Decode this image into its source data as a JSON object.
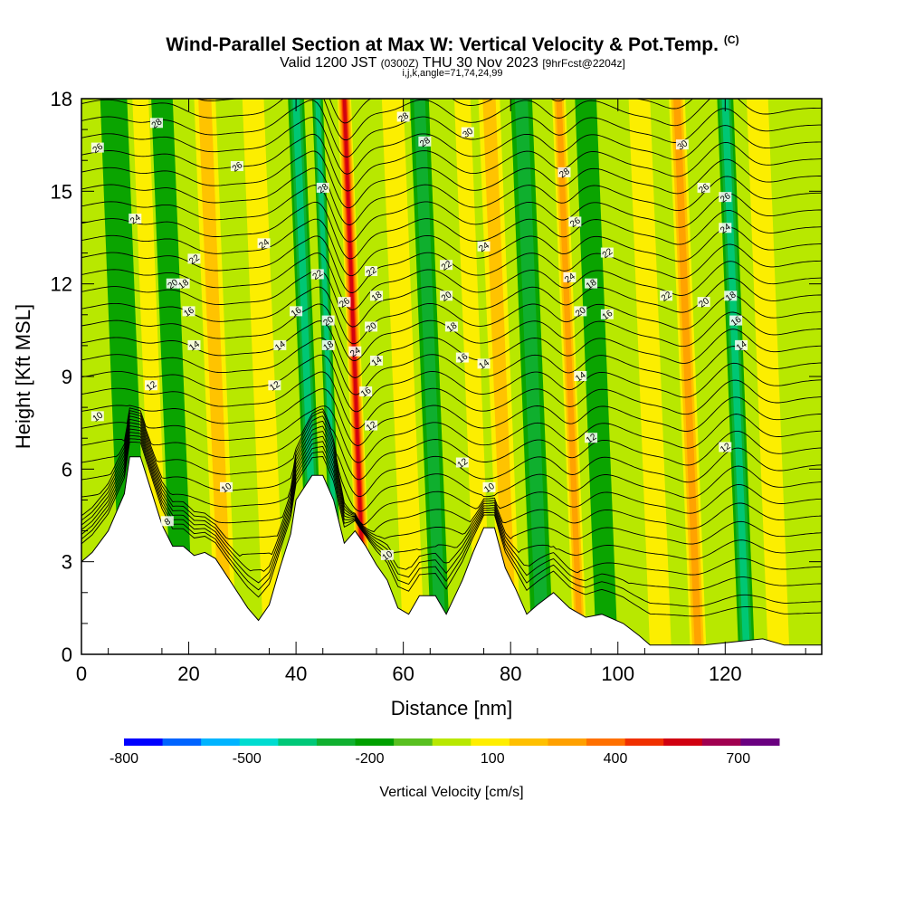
{
  "header": {
    "title": "Wind-Parallel Section at Max W: Vertical Velocity & Pot.Temp.",
    "copyright": "(C)",
    "valid_prefix": "Valid 1200 JST",
    "valid_utc": "(0300Z)",
    "valid_date": "THU 30 Nov 2023",
    "forecast": "[9hrFcst@2204z]",
    "params": "i,j,k,angle=71,74,24,99"
  },
  "chart_data": {
    "type": "contour",
    "xlabel": "Distance [nm]",
    "ylabel": "Height [Kft MSL]",
    "xlim": [
      0,
      138
    ],
    "ylim": [
      0,
      18
    ],
    "x_ticks": [
      0,
      20,
      40,
      60,
      80,
      100,
      120
    ],
    "y_ticks": [
      0,
      3,
      6,
      9,
      12,
      15,
      18
    ],
    "terrain_height_kft": [
      [
        0,
        3
      ],
      [
        2,
        3.3
      ],
      [
        5,
        4
      ],
      [
        8,
        5.2
      ],
      [
        9,
        6.4
      ],
      [
        11,
        6.4
      ],
      [
        13,
        5.3
      ],
      [
        15,
        4.2
      ],
      [
        17,
        3.5
      ],
      [
        19,
        3.5
      ],
      [
        21,
        3.2
      ],
      [
        23,
        3.3
      ],
      [
        25,
        3.1
      ],
      [
        28,
        2.3
      ],
      [
        31,
        1.5
      ],
      [
        33,
        1.1
      ],
      [
        35,
        1.6
      ],
      [
        37,
        2.8
      ],
      [
        39,
        3.9
      ],
      [
        40,
        5
      ],
      [
        43,
        5.8
      ],
      [
        45,
        5.8
      ],
      [
        47,
        5
      ],
      [
        49,
        3.6
      ],
      [
        51,
        4
      ],
      [
        53,
        3.5
      ],
      [
        55,
        2.9
      ],
      [
        57,
        2.4
      ],
      [
        59,
        1.5
      ],
      [
        61,
        1.3
      ],
      [
        63,
        1.9
      ],
      [
        66,
        1.9
      ],
      [
        68,
        1.3
      ],
      [
        71,
        2.4
      ],
      [
        73,
        3.3
      ],
      [
        75,
        4.1
      ],
      [
        77,
        4.1
      ],
      [
        79,
        2.8
      ],
      [
        81,
        2.1
      ],
      [
        83,
        1.3
      ],
      [
        85,
        1.6
      ],
      [
        88,
        2
      ],
      [
        91,
        1.5
      ],
      [
        94,
        1.2
      ],
      [
        97,
        1.3
      ],
      [
        101,
        1
      ],
      [
        104,
        0.6
      ],
      [
        106,
        0.3
      ],
      [
        116,
        0.3
      ],
      [
        127,
        0.5
      ],
      [
        131,
        0.3
      ],
      [
        138,
        0.3
      ]
    ],
    "vertical_velocity_bands": [
      {
        "x": 10,
        "w": -180,
        "width": 5
      },
      {
        "x": 19,
        "w": -150,
        "width": 4
      },
      {
        "x": 15,
        "w": 150,
        "width": 3
      },
      {
        "x": 27,
        "w": 200,
        "width": 4
      },
      {
        "x": 36,
        "w": 120,
        "width": 4
      },
      {
        "x": 44,
        "w": -320,
        "width": 3
      },
      {
        "x": 48,
        "w": -380,
        "width": 2
      },
      {
        "x": 53,
        "w": 650,
        "width": 2.5
      },
      {
        "x": 62,
        "w": 120,
        "width": 4
      },
      {
        "x": 67,
        "w": -220,
        "width": 3.5
      },
      {
        "x": 75,
        "w": 180,
        "width": 3
      },
      {
        "x": 80,
        "w": 220,
        "width": 4
      },
      {
        "x": 86,
        "w": -220,
        "width": 4
      },
      {
        "x": 93,
        "w": 330,
        "width": 2.5
      },
      {
        "x": 98,
        "w": -180,
        "width": 4
      },
      {
        "x": 108,
        "w": 150,
        "width": 4
      },
      {
        "x": 115,
        "w": 320,
        "width": 3
      },
      {
        "x": 124,
        "w": -380,
        "width": 3
      },
      {
        "x": 130,
        "w": 150,
        "width": 4
      }
    ],
    "theta_contour_labels": [
      {
        "x": 14,
        "y": 17.2,
        "text": "28"
      },
      {
        "x": 3,
        "y": 16.4,
        "text": "26"
      },
      {
        "x": 29,
        "y": 15.8,
        "text": "26"
      },
      {
        "x": 45,
        "y": 15.1,
        "text": "28"
      },
      {
        "x": 60,
        "y": 17.4,
        "text": "28"
      },
      {
        "x": 64,
        "y": 16.6,
        "text": "28"
      },
      {
        "x": 72,
        "y": 16.9,
        "text": "30"
      },
      {
        "x": 90,
        "y": 15.6,
        "text": "28"
      },
      {
        "x": 112,
        "y": 16.5,
        "text": "30"
      },
      {
        "x": 116,
        "y": 15.1,
        "text": "26"
      },
      {
        "x": 120,
        "y": 14.8,
        "text": "26"
      },
      {
        "x": 10,
        "y": 14.1,
        "text": "24"
      },
      {
        "x": 34,
        "y": 13.3,
        "text": "24"
      },
      {
        "x": 75,
        "y": 13.2,
        "text": "24"
      },
      {
        "x": 92,
        "y": 14.0,
        "text": "26"
      },
      {
        "x": 120,
        "y": 13.8,
        "text": "24"
      },
      {
        "x": 21,
        "y": 12.8,
        "text": "22"
      },
      {
        "x": 44,
        "y": 12.3,
        "text": "22"
      },
      {
        "x": 54,
        "y": 12.4,
        "text": "22"
      },
      {
        "x": 68,
        "y": 12.6,
        "text": "22"
      },
      {
        "x": 98,
        "y": 13.0,
        "text": "22"
      },
      {
        "x": 91,
        "y": 12.2,
        "text": "24"
      },
      {
        "x": 17,
        "y": 12.0,
        "text": "20"
      },
      {
        "x": 19,
        "y": 12.0,
        "text": "18"
      },
      {
        "x": 55,
        "y": 11.6,
        "text": "18"
      },
      {
        "x": 68,
        "y": 11.6,
        "text": "20"
      },
      {
        "x": 95,
        "y": 12.0,
        "text": "18"
      },
      {
        "x": 109,
        "y": 11.6,
        "text": "22"
      },
      {
        "x": 116,
        "y": 11.4,
        "text": "20"
      },
      {
        "x": 121,
        "y": 11.6,
        "text": "18"
      },
      {
        "x": 49,
        "y": 11.4,
        "text": "26"
      },
      {
        "x": 20,
        "y": 11.1,
        "text": "16"
      },
      {
        "x": 40,
        "y": 11.1,
        "text": "16"
      },
      {
        "x": 46,
        "y": 10.8,
        "text": "20"
      },
      {
        "x": 54,
        "y": 10.6,
        "text": "20"
      },
      {
        "x": 69,
        "y": 10.6,
        "text": "18"
      },
      {
        "x": 93,
        "y": 11.1,
        "text": "20"
      },
      {
        "x": 98,
        "y": 11.0,
        "text": "16"
      },
      {
        "x": 122,
        "y": 10.8,
        "text": "16"
      },
      {
        "x": 21,
        "y": 10.0,
        "text": "14"
      },
      {
        "x": 37,
        "y": 10.0,
        "text": "14"
      },
      {
        "x": 46,
        "y": 10.0,
        "text": "18"
      },
      {
        "x": 51,
        "y": 9.8,
        "text": "24"
      },
      {
        "x": 55,
        "y": 9.5,
        "text": "14"
      },
      {
        "x": 71,
        "y": 9.6,
        "text": "16"
      },
      {
        "x": 75,
        "y": 9.4,
        "text": "14"
      },
      {
        "x": 123,
        "y": 10.0,
        "text": "14"
      },
      {
        "x": 13,
        "y": 8.7,
        "text": "12"
      },
      {
        "x": 36,
        "y": 8.7,
        "text": "12"
      },
      {
        "x": 53,
        "y": 8.5,
        "text": "16"
      },
      {
        "x": 93,
        "y": 9.0,
        "text": "14"
      },
      {
        "x": 3,
        "y": 7.7,
        "text": "10"
      },
      {
        "x": 54,
        "y": 7.4,
        "text": "12"
      },
      {
        "x": 95,
        "y": 7.0,
        "text": "12"
      },
      {
        "x": 71,
        "y": 6.2,
        "text": "12"
      },
      {
        "x": 120,
        "y": 6.7,
        "text": "12"
      },
      {
        "x": 27,
        "y": 5.4,
        "text": "10"
      },
      {
        "x": 76,
        "y": 5.4,
        "text": "10"
      },
      {
        "x": 16,
        "y": 4.3,
        "text": "8"
      },
      {
        "x": 57,
        "y": 3.2,
        "text": "10"
      }
    ],
    "colorbar": {
      "label": "Vertical Velocity [cm/s]",
      "tick_labels": [
        "-800",
        "-500",
        "-200",
        "100",
        "400",
        "700"
      ],
      "levels": [
        -800,
        -700,
        -600,
        -500,
        -400,
        -300,
        -200,
        -100,
        0,
        100,
        200,
        300,
        400,
        500,
        600,
        700,
        800
      ],
      "colors": [
        "#0000ff",
        "#0064ff",
        "#00b4ff",
        "#00dcd0",
        "#00c878",
        "#10b030",
        "#00a000",
        "#58c020",
        "#b8e800",
        "#ffee00",
        "#ffc000",
        "#ffa000",
        "#ff7000",
        "#f03000",
        "#d00010",
        "#a00050",
        "#6a0080"
      ]
    }
  }
}
